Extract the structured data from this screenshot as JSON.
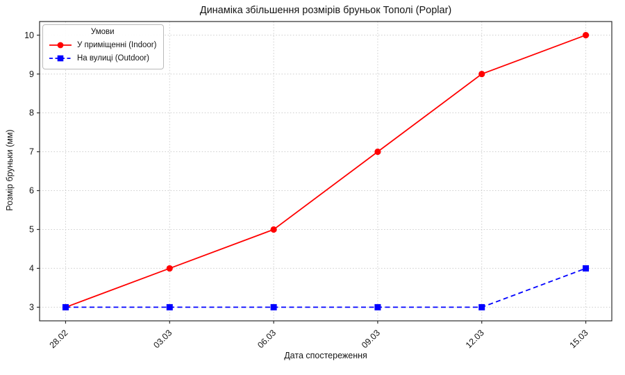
{
  "chart_data": {
    "type": "line",
    "title": "Динаміка збільшення розмірів бруньок Тополі (Poplar)",
    "xlabel": "Дата спостереження",
    "ylabel": "Розмір бруньки (мм)",
    "categories": [
      "28.02",
      "03.03",
      "06.03",
      "09.03",
      "12.03",
      "15.03"
    ],
    "series": [
      {
        "name": "У приміщенні (Indoor)",
        "values": [
          3,
          4,
          5,
          7,
          9,
          10
        ],
        "color": "#ff0000",
        "line_style": "solid",
        "marker": "circle"
      },
      {
        "name": "На вулиці (Outdoor)",
        "values": [
          3,
          3,
          3,
          3,
          3,
          4
        ],
        "color": "#0000ff",
        "line_style": "dashed",
        "marker": "square"
      }
    ],
    "yticks": [
      3,
      4,
      5,
      6,
      7,
      8,
      9,
      10
    ],
    "ylim": [
      2.65,
      10.35
    ],
    "grid": true,
    "grid_style": "dotted",
    "grid_color": "#cccccc",
    "legend_title": "Умови",
    "legend_position": "upper left",
    "xtick_rotation": 45,
    "spine_color": "#2b2b2b",
    "text_color": "#141414"
  }
}
